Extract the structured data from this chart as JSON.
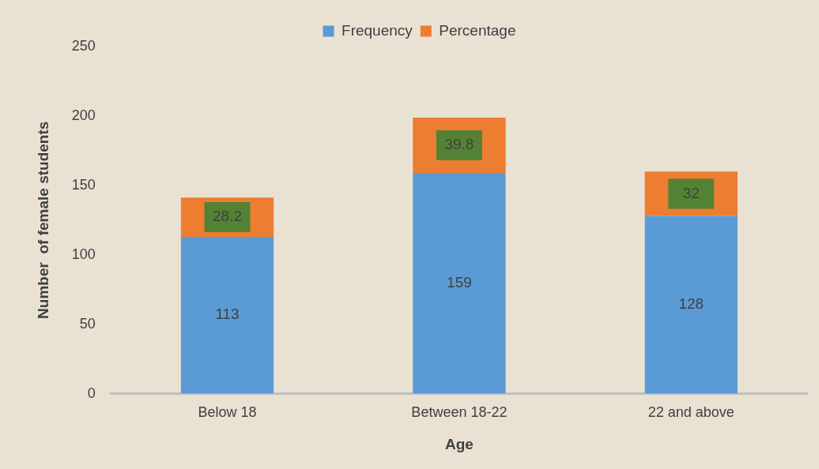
{
  "chart_data": {
    "type": "bar",
    "stacked": true,
    "xlabel": "Age",
    "ylabel": "Number  of female students",
    "categories": [
      "Below 18",
      "Between 18-22",
      "22 and above"
    ],
    "series": [
      {
        "name": "Frequency",
        "color": "#5b9bd5",
        "values": [
          113,
          159,
          128
        ]
      },
      {
        "name": "Percentage",
        "color": "#ed7d31",
        "values": [
          28.2,
          39.8,
          32
        ]
      }
    ],
    "ylim": [
      0,
      250
    ],
    "yticks": [
      0,
      50,
      100,
      150,
      200,
      250
    ],
    "grid": false,
    "legend": "top",
    "data_labels": true
  }
}
